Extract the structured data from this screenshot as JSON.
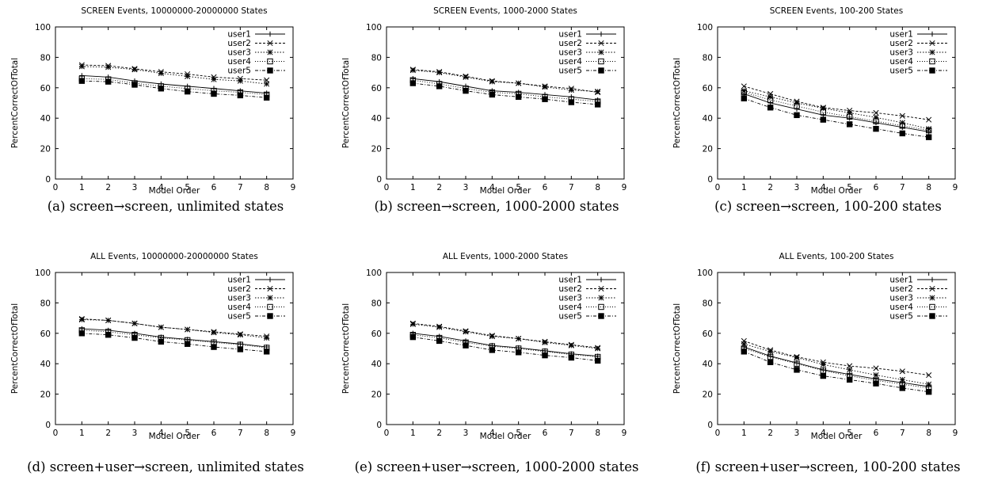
{
  "chart_data": [
    {
      "type": "line",
      "title": "SCREEN Events, 10000000-20000000 States",
      "caption": "(a) screen→screen, unlimited states",
      "xlabel": "Model Order",
      "ylabel": "PercentCorrectOfTotal",
      "xlim": [
        0,
        9
      ],
      "ylim": [
        0,
        100
      ],
      "x": [
        1,
        2,
        3,
        4,
        5,
        6,
        7,
        8
      ],
      "xticks": [
        "0",
        "1",
        "2",
        "3",
        "4",
        "5",
        "6",
        "7",
        "8",
        "9"
      ],
      "yticks": [
        "0",
        "20",
        "40",
        "60",
        "80",
        "100"
      ],
      "legend_position": "top-right",
      "series": [
        {
          "name": "user1",
          "values": [
            68,
            67,
            64.5,
            62.5,
            61,
            59.5,
            58,
            56.5
          ]
        },
        {
          "name": "user2",
          "values": [
            75,
            74.5,
            72.5,
            70.5,
            69,
            67,
            66,
            65
          ]
        },
        {
          "name": "user3",
          "values": [
            74,
            73.5,
            72,
            69.5,
            67.5,
            65.5,
            64.5,
            62.5
          ]
        },
        {
          "name": "user4",
          "values": [
            66,
            65.5,
            63,
            61,
            59.5,
            58,
            57,
            55.5
          ]
        },
        {
          "name": "user5",
          "values": [
            64.5,
            64,
            62,
            59.5,
            57.5,
            56,
            55,
            53.5
          ]
        }
      ]
    },
    {
      "type": "line",
      "title": "SCREEN Events, 1000-2000 States",
      "caption": "(b) screen→screen, 1000-2000 states",
      "xlabel": "Model Order",
      "ylabel": "PercentCorrectOfTotal",
      "xlim": [
        0,
        9
      ],
      "ylim": [
        0,
        100
      ],
      "x": [
        1,
        2,
        3,
        4,
        5,
        6,
        7,
        8
      ],
      "xticks": [
        "0",
        "1",
        "2",
        "3",
        "4",
        "5",
        "6",
        "7",
        "8",
        "9"
      ],
      "yticks": [
        "0",
        "20",
        "40",
        "60",
        "80",
        "100"
      ],
      "legend_position": "top-right",
      "series": [
        {
          "name": "user1",
          "values": [
            66,
            64,
            61,
            58,
            57,
            55.5,
            54,
            52
          ]
        },
        {
          "name": "user2",
          "values": [
            72,
            70.5,
            67.5,
            64.5,
            63,
            61,
            59.5,
            57
          ]
        },
        {
          "name": "user3",
          "values": [
            71.5,
            70,
            67,
            64,
            63,
            60.5,
            58.5,
            57.5
          ]
        },
        {
          "name": "user4",
          "values": [
            65,
            62.5,
            59.5,
            57,
            56,
            54,
            52.5,
            51
          ]
        },
        {
          "name": "user5",
          "values": [
            63,
            61,
            58,
            55.5,
            54,
            52.5,
            50.5,
            49
          ]
        }
      ]
    },
    {
      "type": "line",
      "title": "SCREEN Events, 100-200 States",
      "caption": "(c) screen→screen, 100-200 states",
      "xlabel": "Model Order",
      "ylabel": "PercentCorrectOfTotal",
      "xlim": [
        0,
        9
      ],
      "ylim": [
        0,
        100
      ],
      "x": [
        1,
        2,
        3,
        4,
        5,
        6,
        7,
        8
      ],
      "xticks": [
        "0",
        "1",
        "2",
        "3",
        "4",
        "5",
        "6",
        "7",
        "8",
        "9"
      ],
      "yticks": [
        "0",
        "20",
        "40",
        "60",
        "80",
        "100"
      ],
      "legend_position": "top-right",
      "series": [
        {
          "name": "user1",
          "values": [
            56,
            50,
            46,
            42,
            40,
            37,
            34,
            31
          ]
        },
        {
          "name": "user2",
          "values": [
            61,
            56,
            51,
            47,
            45,
            43.5,
            41.5,
            39
          ]
        },
        {
          "name": "user3",
          "values": [
            58,
            54,
            50,
            46.5,
            43.5,
            40.5,
            37,
            33
          ]
        },
        {
          "name": "user4",
          "values": [
            57,
            52,
            48,
            44,
            41,
            38,
            35,
            32
          ]
        },
        {
          "name": "user5",
          "values": [
            53,
            47,
            42,
            39,
            36,
            33,
            30,
            27.5
          ]
        }
      ]
    },
    {
      "type": "line",
      "title": "ALL Events, 10000000-20000000 States",
      "caption": "(d) screen+user→screen, unlimited states",
      "xlabel": "Model Order",
      "ylabel": "PercentCorrectOfTotal",
      "xlim": [
        0,
        9
      ],
      "ylim": [
        0,
        100
      ],
      "x": [
        1,
        2,
        3,
        4,
        5,
        6,
        7,
        8
      ],
      "xticks": [
        "0",
        "1",
        "2",
        "3",
        "4",
        "5",
        "6",
        "7",
        "8",
        "9"
      ],
      "yticks": [
        "0",
        "20",
        "40",
        "60",
        "80",
        "100"
      ],
      "legend_position": "top-right",
      "series": [
        {
          "name": "user1",
          "values": [
            63,
            62,
            60,
            57.5,
            56,
            54.5,
            53,
            51
          ]
        },
        {
          "name": "user2",
          "values": [
            69.5,
            68.5,
            66.5,
            64,
            62.5,
            61,
            59.5,
            58
          ]
        },
        {
          "name": "user3",
          "values": [
            69,
            68.5,
            66.5,
            64,
            62.5,
            60.5,
            59,
            57
          ]
        },
        {
          "name": "user4",
          "values": [
            62,
            61,
            59,
            57,
            55.5,
            54,
            52.5,
            50.5
          ]
        },
        {
          "name": "user5",
          "values": [
            60,
            59,
            57,
            54.5,
            53,
            51,
            49.5,
            48
          ]
        }
      ]
    },
    {
      "type": "line",
      "title": "ALL Events, 1000-2000 States",
      "caption": "(e) screen+user→screen, 1000-2000 states",
      "xlabel": "Model Order",
      "ylabel": "PercentCorrectOfTotal",
      "xlim": [
        0,
        9
      ],
      "ylim": [
        0,
        100
      ],
      "x": [
        1,
        2,
        3,
        4,
        5,
        6,
        7,
        8
      ],
      "xticks": [
        "0",
        "1",
        "2",
        "3",
        "4",
        "5",
        "6",
        "7",
        "8",
        "9"
      ],
      "yticks": [
        "0",
        "20",
        "40",
        "60",
        "80",
        "100"
      ],
      "legend_position": "top-right",
      "series": [
        {
          "name": "user1",
          "values": [
            60,
            58,
            55,
            52,
            50.5,
            48.5,
            46.5,
            45
          ]
        },
        {
          "name": "user2",
          "values": [
            66.5,
            64.5,
            61.5,
            58.5,
            56.5,
            54.5,
            52.5,
            50.5
          ]
        },
        {
          "name": "user3",
          "values": [
            66,
            64,
            61,
            58,
            56.5,
            54,
            52,
            50
          ]
        },
        {
          "name": "user4",
          "values": [
            59,
            57,
            54,
            51.5,
            50,
            48,
            46,
            44.5
          ]
        },
        {
          "name": "user5",
          "values": [
            57.5,
            55,
            52,
            49,
            47.5,
            45.5,
            44,
            42
          ]
        }
      ]
    },
    {
      "type": "line",
      "title": "ALL Events, 100-200 States",
      "caption": "(f) screen+user→screen, 100-200 states",
      "xlabel": "Model Order",
      "ylabel": "PercentCorrectOfTotal",
      "xlim": [
        0,
        9
      ],
      "ylim": [
        0,
        100
      ],
      "x": [
        1,
        2,
        3,
        4,
        5,
        6,
        7,
        8
      ],
      "xticks": [
        "0",
        "1",
        "2",
        "3",
        "4",
        "5",
        "6",
        "7",
        "8",
        "9"
      ],
      "yticks": [
        "0",
        "20",
        "40",
        "60",
        "80",
        "100"
      ],
      "legend_position": "top-right",
      "series": [
        {
          "name": "user1",
          "values": [
            51,
            45,
            40.5,
            36,
            33,
            30,
            27.5,
            25
          ]
        },
        {
          "name": "user2",
          "values": [
            55,
            49,
            44.5,
            41,
            38.5,
            37,
            35,
            32.5
          ]
        },
        {
          "name": "user3",
          "values": [
            53,
            48,
            44,
            39.5,
            36,
            32.5,
            29.5,
            26.5
          ]
        },
        {
          "name": "user4",
          "values": [
            50,
            44.5,
            40,
            35.5,
            32,
            29,
            26.5,
            24
          ]
        },
        {
          "name": "user5",
          "values": [
            48,
            41,
            36,
            32,
            29.5,
            27,
            24,
            21.5
          ]
        }
      ]
    }
  ]
}
